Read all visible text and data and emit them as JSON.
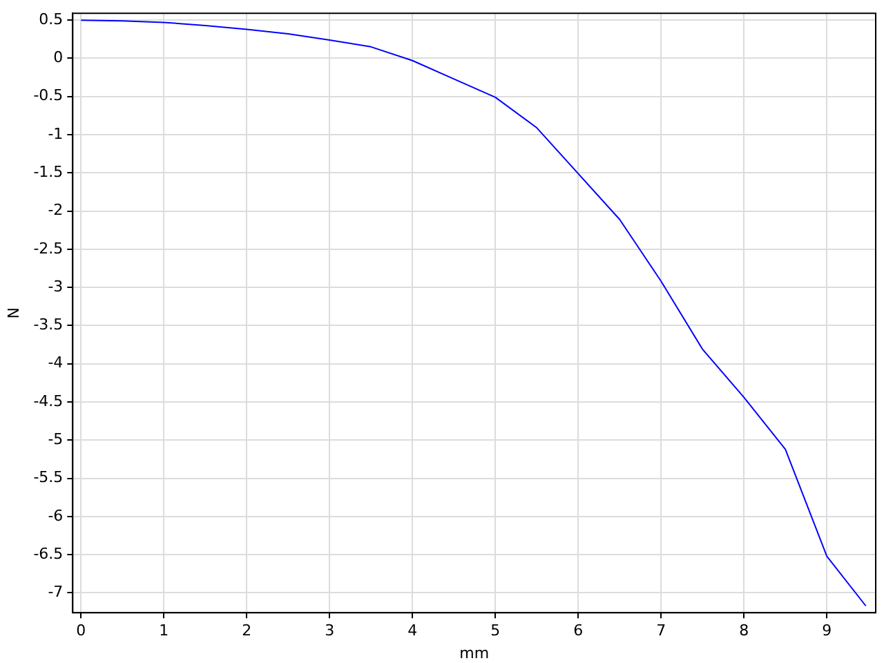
{
  "chart_data": {
    "type": "line",
    "xlabel": "mm",
    "ylabel": "N",
    "x": [
      0,
      0.5,
      1,
      1.5,
      2,
      2.5,
      3,
      3.5,
      4,
      4.5,
      5,
      5.5,
      6,
      6.5,
      7,
      7.5,
      8,
      8.5,
      9,
      9.47
    ],
    "series": [
      {
        "color": "#0000ff",
        "values": [
          0.5,
          0.49,
          0.47,
          0.43,
          0.38,
          0.32,
          0.24,
          0.15,
          -0.03,
          -0.27,
          -0.51,
          -0.91,
          -1.51,
          -2.11,
          -2.92,
          -3.81,
          -4.44,
          -5.12,
          -6.52,
          -7.17
        ]
      }
    ],
    "xlim": [
      -0.1,
      9.59
    ],
    "xticks": [
      0,
      1,
      2,
      3,
      4,
      5,
      6,
      7,
      8,
      9
    ],
    "ylim": [
      -7.26,
      0.59
    ],
    "yticks": [
      0.5,
      0,
      -0.5,
      -1,
      -1.5,
      -2,
      -2.5,
      -3,
      -3.5,
      -4,
      -4.5,
      -5,
      -5.5,
      -6,
      -6.5,
      -7
    ],
    "grid": true,
    "legend": false,
    "marker": "none",
    "line_style": "solid"
  }
}
